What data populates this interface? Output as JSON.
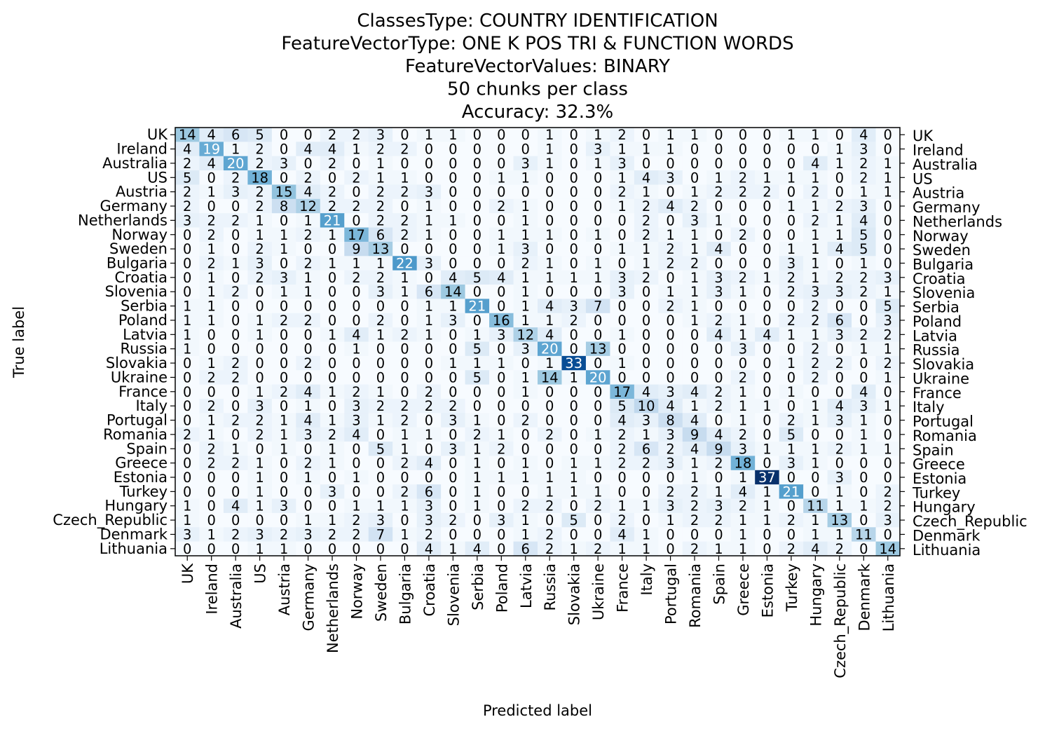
{
  "chart_data": {
    "type": "heatmap",
    "title_lines": [
      "ClassesType: COUNTRY IDENTIFICATION",
      "FeatureVectorType: ONE K POS TRI & FUNCTION WORDS",
      "FeatureVectorValues: BINARY",
      "50 chunks per class",
      "Accuracy: 32.3%"
    ],
    "xlabel": "Predicted label",
    "ylabel": "True label",
    "colormap": [
      "#f7fbff",
      "#deebf7",
      "#c6dbef",
      "#9ecae1",
      "#6baed6",
      "#4292c6",
      "#2171b5",
      "#08519c",
      "#08306b"
    ],
    "value_range": [
      0,
      37
    ],
    "classes": [
      "UK",
      "Ireland",
      "Australia",
      "US",
      "Austria",
      "Germany",
      "Netherlands",
      "Norway",
      "Sweden",
      "Bulgaria",
      "Croatia",
      "Slovenia",
      "Serbia",
      "Poland",
      "Latvia",
      "Russia",
      "Slovakia",
      "Ukraine",
      "France",
      "Italy",
      "Portugal",
      "Romania",
      "Spain",
      "Greece",
      "Estonia",
      "Turkey",
      "Hungary",
      "Czech_Republic",
      "Denmark",
      "Lithuania"
    ],
    "matrix": [
      [
        14,
        4,
        6,
        5,
        0,
        0,
        2,
        2,
        3,
        0,
        1,
        1,
        0,
        0,
        0,
        1,
        0,
        1,
        2,
        0,
        1,
        1,
        0,
        0,
        0,
        1,
        1,
        0,
        4,
        0
      ],
      [
        4,
        19,
        1,
        2,
        0,
        4,
        4,
        1,
        2,
        2,
        0,
        0,
        0,
        0,
        0,
        1,
        0,
        3,
        1,
        1,
        1,
        0,
        0,
        0,
        0,
        0,
        0,
        1,
        3,
        0
      ],
      [
        2,
        4,
        20,
        2,
        3,
        0,
        2,
        0,
        1,
        0,
        0,
        0,
        0,
        0,
        3,
        1,
        0,
        1,
        3,
        0,
        0,
        0,
        0,
        0,
        0,
        0,
        4,
        1,
        2,
        1
      ],
      [
        5,
        0,
        2,
        18,
        0,
        2,
        0,
        2,
        1,
        1,
        0,
        0,
        0,
        1,
        1,
        0,
        0,
        0,
        1,
        4,
        3,
        0,
        1,
        2,
        1,
        1,
        1,
        0,
        2,
        1
      ],
      [
        2,
        1,
        3,
        2,
        15,
        4,
        2,
        0,
        2,
        2,
        3,
        0,
        0,
        0,
        0,
        0,
        0,
        0,
        2,
        1,
        0,
        1,
        2,
        2,
        2,
        0,
        2,
        0,
        1,
        1
      ],
      [
        2,
        0,
        0,
        2,
        8,
        12,
        2,
        2,
        2,
        0,
        1,
        0,
        0,
        2,
        1,
        0,
        0,
        0,
        1,
        2,
        4,
        2,
        0,
        0,
        0,
        1,
        1,
        2,
        3,
        0
      ],
      [
        3,
        2,
        2,
        1,
        0,
        1,
        21,
        0,
        2,
        2,
        1,
        1,
        0,
        0,
        1,
        0,
        0,
        0,
        0,
        2,
        0,
        3,
        1,
        0,
        0,
        0,
        2,
        1,
        4,
        0
      ],
      [
        0,
        2,
        0,
        1,
        1,
        2,
        1,
        17,
        6,
        2,
        1,
        0,
        0,
        1,
        1,
        1,
        0,
        1,
        0,
        2,
        1,
        1,
        0,
        2,
        0,
        0,
        1,
        1,
        5,
        0
      ],
      [
        0,
        1,
        0,
        2,
        1,
        0,
        0,
        9,
        13,
        0,
        0,
        0,
        0,
        1,
        3,
        0,
        0,
        0,
        1,
        1,
        2,
        1,
        4,
        0,
        0,
        1,
        1,
        4,
        5,
        0
      ],
      [
        0,
        2,
        1,
        3,
        0,
        2,
        1,
        1,
        1,
        22,
        3,
        0,
        0,
        0,
        2,
        1,
        0,
        1,
        0,
        1,
        2,
        2,
        0,
        0,
        0,
        3,
        1,
        0,
        1,
        0
      ],
      [
        0,
        1,
        0,
        2,
        3,
        1,
        0,
        2,
        2,
        1,
        0,
        4,
        5,
        4,
        1,
        1,
        1,
        1,
        3,
        2,
        0,
        1,
        3,
        2,
        1,
        2,
        1,
        2,
        2,
        3
      ],
      [
        0,
        1,
        2,
        0,
        1,
        1,
        0,
        0,
        3,
        1,
        6,
        14,
        0,
        0,
        1,
        0,
        0,
        0,
        3,
        0,
        1,
        1,
        3,
        1,
        0,
        2,
        3,
        3,
        2,
        1
      ],
      [
        1,
        1,
        0,
        0,
        0,
        0,
        0,
        0,
        0,
        0,
        1,
        1,
        21,
        0,
        1,
        4,
        3,
        7,
        0,
        0,
        2,
        1,
        0,
        0,
        0,
        0,
        2,
        0,
        0,
        5
      ],
      [
        1,
        1,
        0,
        1,
        2,
        2,
        0,
        0,
        2,
        0,
        1,
        3,
        0,
        16,
        1,
        1,
        2,
        0,
        0,
        0,
        0,
        1,
        2,
        1,
        0,
        2,
        2,
        6,
        0,
        3
      ],
      [
        1,
        0,
        0,
        1,
        0,
        0,
        1,
        4,
        1,
        2,
        1,
        0,
        1,
        3,
        12,
        4,
        0,
        0,
        1,
        0,
        0,
        0,
        4,
        1,
        4,
        1,
        1,
        3,
        2,
        2
      ],
      [
        1,
        0,
        0,
        0,
        0,
        0,
        0,
        1,
        0,
        0,
        0,
        0,
        5,
        0,
        3,
        20,
        0,
        13,
        0,
        0,
        0,
        0,
        0,
        3,
        0,
        0,
        2,
        0,
        1,
        1
      ],
      [
        0,
        1,
        2,
        0,
        0,
        2,
        0,
        0,
        0,
        0,
        0,
        1,
        1,
        1,
        0,
        1,
        33,
        0,
        1,
        0,
        0,
        0,
        0,
        0,
        0,
        1,
        2,
        2,
        0,
        2
      ],
      [
        0,
        2,
        2,
        0,
        0,
        0,
        0,
        0,
        0,
        0,
        0,
        0,
        5,
        0,
        1,
        14,
        1,
        20,
        0,
        0,
        0,
        0,
        0,
        2,
        0,
        0,
        2,
        0,
        0,
        1
      ],
      [
        0,
        0,
        0,
        1,
        2,
        4,
        1,
        2,
        1,
        0,
        2,
        0,
        0,
        0,
        1,
        0,
        0,
        0,
        17,
        4,
        3,
        4,
        2,
        1,
        0,
        1,
        0,
        0,
        4,
        0
      ],
      [
        0,
        2,
        0,
        3,
        0,
        1,
        0,
        3,
        2,
        2,
        2,
        2,
        0,
        0,
        0,
        0,
        0,
        0,
        5,
        10,
        4,
        1,
        2,
        1,
        1,
        0,
        1,
        4,
        3,
        1
      ],
      [
        0,
        1,
        2,
        2,
        1,
        4,
        1,
        3,
        1,
        2,
        0,
        3,
        1,
        0,
        2,
        0,
        0,
        0,
        4,
        3,
        8,
        4,
        0,
        1,
        0,
        2,
        1,
        3,
        1,
        0
      ],
      [
        2,
        1,
        0,
        2,
        1,
        3,
        2,
        4,
        0,
        1,
        1,
        0,
        2,
        1,
        0,
        2,
        0,
        1,
        2,
        1,
        3,
        9,
        4,
        2,
        0,
        5,
        0,
        0,
        1,
        0
      ],
      [
        0,
        2,
        1,
        0,
        1,
        0,
        1,
        0,
        5,
        1,
        0,
        3,
        1,
        2,
        0,
        0,
        0,
        0,
        2,
        6,
        2,
        4,
        9,
        3,
        1,
        1,
        1,
        2,
        1,
        1
      ],
      [
        0,
        2,
        2,
        1,
        0,
        2,
        1,
        0,
        0,
        2,
        4,
        0,
        1,
        0,
        1,
        0,
        1,
        1,
        2,
        2,
        3,
        1,
        2,
        18,
        0,
        3,
        1,
        0,
        0,
        0
      ],
      [
        0,
        0,
        0,
        1,
        0,
        1,
        0,
        1,
        0,
        0,
        0,
        0,
        1,
        1,
        1,
        1,
        1,
        0,
        0,
        0,
        0,
        1,
        0,
        1,
        37,
        0,
        0,
        3,
        0,
        0
      ],
      [
        0,
        0,
        0,
        1,
        0,
        0,
        3,
        0,
        0,
        2,
        6,
        0,
        1,
        0,
        0,
        1,
        1,
        1,
        0,
        0,
        2,
        2,
        1,
        4,
        1,
        21,
        0,
        1,
        0,
        2
      ],
      [
        1,
        0,
        4,
        1,
        3,
        0,
        0,
        1,
        1,
        1,
        3,
        0,
        1,
        0,
        2,
        2,
        0,
        2,
        1,
        1,
        3,
        2,
        3,
        2,
        1,
        0,
        11,
        1,
        1,
        2
      ],
      [
        1,
        0,
        0,
        0,
        0,
        1,
        1,
        2,
        3,
        0,
        3,
        2,
        0,
        3,
        1,
        0,
        5,
        0,
        2,
        0,
        1,
        2,
        2,
        1,
        1,
        2,
        1,
        13,
        0,
        3
      ],
      [
        3,
        1,
        2,
        3,
        2,
        3,
        2,
        2,
        7,
        1,
        2,
        0,
        0,
        0,
        1,
        2,
        0,
        0,
        4,
        1,
        0,
        0,
        0,
        1,
        0,
        0,
        1,
        1,
        11,
        0
      ],
      [
        0,
        0,
        0,
        1,
        1,
        0,
        0,
        0,
        0,
        0,
        4,
        1,
        4,
        0,
        6,
        2,
        1,
        2,
        1,
        1,
        0,
        2,
        1,
        1,
        0,
        2,
        4,
        2,
        0,
        14
      ]
    ]
  }
}
